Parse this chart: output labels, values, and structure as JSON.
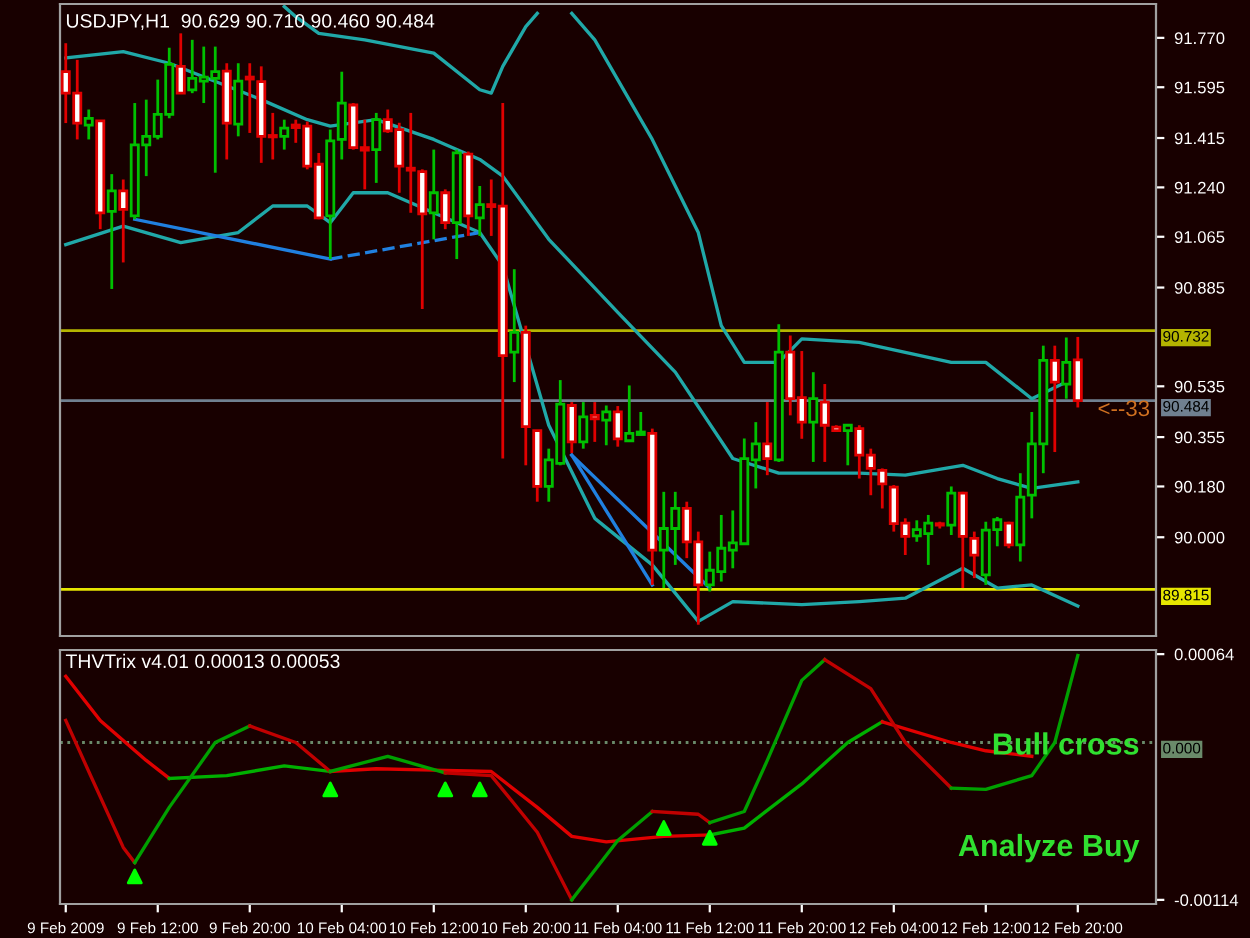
{
  "chart_data": [
    {
      "type": "candlestick",
      "title": "USDJPY,H1  90.629 90.710 90.460 90.484",
      "x": [
        "2009-02-09T04:00",
        "2009-02-09T05:00",
        "2009-02-09T06:00",
        "2009-02-09T07:00",
        "2009-02-09T08:00",
        "2009-02-09T09:00",
        "2009-02-09T10:00",
        "2009-02-09T11:00",
        "2009-02-09T12:00",
        "2009-02-09T13:00",
        "2009-02-09T14:00",
        "2009-02-09T15:00",
        "2009-02-09T16:00",
        "2009-02-09T17:00",
        "2009-02-09T18:00",
        "2009-02-09T19:00",
        "2009-02-09T20:00",
        "2009-02-09T21:00",
        "2009-02-09T22:00",
        "2009-02-09T23:00",
        "2009-02-10T00:00",
        "2009-02-10T01:00",
        "2009-02-10T02:00",
        "2009-02-10T03:00",
        "2009-02-10T04:00",
        "2009-02-10T05:00",
        "2009-02-10T06:00",
        "2009-02-10T07:00",
        "2009-02-10T08:00",
        "2009-02-10T09:00",
        "2009-02-10T10:00",
        "2009-02-10T11:00",
        "2009-02-10T12:00",
        "2009-02-10T13:00",
        "2009-02-10T14:00",
        "2009-02-10T15:00",
        "2009-02-10T16:00",
        "2009-02-10T17:00",
        "2009-02-10T18:00",
        "2009-02-10T19:00",
        "2009-02-10T20:00",
        "2009-02-10T21:00",
        "2009-02-10T22:00",
        "2009-02-10T23:00",
        "2009-02-11T00:00",
        "2009-02-11T01:00",
        "2009-02-11T02:00",
        "2009-02-11T03:00",
        "2009-02-11T04:00",
        "2009-02-11T05:00",
        "2009-02-11T06:00",
        "2009-02-11T07:00",
        "2009-02-11T08:00",
        "2009-02-11T09:00",
        "2009-02-11T10:00",
        "2009-02-11T11:00",
        "2009-02-11T12:00",
        "2009-02-11T13:00",
        "2009-02-11T14:00",
        "2009-02-11T15:00",
        "2009-02-11T16:00",
        "2009-02-11T17:00",
        "2009-02-11T18:00",
        "2009-02-11T19:00",
        "2009-02-11T20:00",
        "2009-02-11T21:00",
        "2009-02-11T22:00",
        "2009-02-11T23:00",
        "2009-02-12T00:00",
        "2009-02-12T01:00",
        "2009-02-12T02:00",
        "2009-02-12T03:00",
        "2009-02-12T04:00",
        "2009-02-12T05:00",
        "2009-02-12T06:00",
        "2009-02-12T07:00",
        "2009-02-12T08:00",
        "2009-02-12T09:00",
        "2009-02-12T10:00",
        "2009-02-12T11:00",
        "2009-02-12T12:00",
        "2009-02-12T13:00",
        "2009-02-12T14:00",
        "2009-02-12T15:00",
        "2009-02-12T16:00",
        "2009-02-12T17:00",
        "2009-02-12T18:00",
        "2009-02-12T19:00",
        "2009-02-12T20:00"
      ],
      "ohlc": [
        [
          91.65,
          91.751,
          91.468,
          91.574
        ],
        [
          91.574,
          91.692,
          91.41,
          91.468
        ],
        [
          91.461,
          91.516,
          91.41,
          91.485
        ],
        [
          91.476,
          91.476,
          91.092,
          91.15
        ],
        [
          91.155,
          91.287,
          90.88,
          91.228
        ],
        [
          91.228,
          91.268,
          90.974,
          91.162
        ],
        [
          91.139,
          91.539,
          91.127,
          91.391
        ],
        [
          91.391,
          91.551,
          91.28,
          91.421
        ],
        [
          91.421,
          91.622,
          91.41,
          91.499
        ],
        [
          91.499,
          91.735,
          91.485,
          91.676
        ],
        [
          91.669,
          91.786,
          91.574,
          91.574
        ],
        [
          91.586,
          91.763,
          91.574,
          91.626
        ],
        [
          91.617,
          91.739,
          91.539,
          91.631
        ],
        [
          91.626,
          91.739,
          91.292,
          91.65
        ],
        [
          91.652,
          91.68,
          91.339,
          91.468
        ],
        [
          91.464,
          91.68,
          91.421,
          91.617
        ],
        [
          91.631,
          91.68,
          91.433,
          91.624
        ],
        [
          91.615,
          91.669,
          91.327,
          91.421
        ],
        [
          91.424,
          91.504,
          91.339,
          91.419
        ],
        [
          91.421,
          91.48,
          91.374,
          91.45
        ],
        [
          91.461,
          91.48,
          91.398,
          91.452
        ],
        [
          91.457,
          91.473,
          91.304,
          91.315
        ],
        [
          91.322,
          91.362,
          91.127,
          91.132
        ],
        [
          91.139,
          91.445,
          90.986,
          91.405
        ],
        [
          91.41,
          91.65,
          91.339,
          91.539
        ],
        [
          91.532,
          91.539,
          91.374,
          91.381
        ],
        [
          91.381,
          91.48,
          91.233,
          91.372
        ],
        [
          91.374,
          91.504,
          91.256,
          91.48
        ],
        [
          91.48,
          91.516,
          91.433,
          91.44
        ],
        [
          91.445,
          91.469,
          91.221,
          91.315
        ],
        [
          91.308,
          91.504,
          91.15,
          91.301
        ],
        [
          91.296,
          91.304,
          90.809,
          91.146
        ],
        [
          91.15,
          91.374,
          91.056,
          91.221
        ],
        [
          91.221,
          91.233,
          91.092,
          91.115
        ],
        [
          91.115,
          91.374,
          90.986,
          91.362
        ],
        [
          91.358,
          91.367,
          91.068,
          91.139
        ],
        [
          91.132,
          91.245,
          91.068,
          91.179
        ],
        [
          91.179,
          91.268,
          91.068,
          91.172
        ],
        [
          91.174,
          91.539,
          90.279,
          90.644
        ],
        [
          90.656,
          90.95,
          90.55,
          90.726
        ],
        [
          90.726,
          90.75,
          90.255,
          90.392
        ],
        [
          90.378,
          90.378,
          90.126,
          90.18
        ],
        [
          90.18,
          90.314,
          90.126,
          90.274
        ],
        [
          90.262,
          90.557,
          90.255,
          90.472
        ],
        [
          90.467,
          90.479,
          90.298,
          90.338
        ],
        [
          90.338,
          90.479,
          90.314,
          90.427
        ],
        [
          90.432,
          90.479,
          90.338,
          90.42
        ],
        [
          90.415,
          90.467,
          90.326,
          90.444
        ],
        [
          90.444,
          90.465,
          90.321,
          90.349
        ],
        [
          90.342,
          90.538,
          90.338,
          90.368
        ],
        [
          90.364,
          90.444,
          90.361,
          90.373
        ],
        [
          90.368,
          90.385,
          89.831,
          89.954
        ],
        [
          89.954,
          90.161,
          89.82,
          90.031
        ],
        [
          90.031,
          90.161,
          89.902,
          90.102
        ],
        [
          90.102,
          90.126,
          89.926,
          89.984
        ],
        [
          89.984,
          90.02,
          89.69,
          89.831
        ],
        [
          89.831,
          89.949,
          89.808,
          89.883
        ],
        [
          89.878,
          90.079,
          89.843,
          89.961
        ],
        [
          89.954,
          90.095,
          89.89,
          89.98
        ],
        [
          89.977,
          90.35,
          89.973,
          90.279
        ],
        [
          90.274,
          90.408,
          90.173,
          90.331
        ],
        [
          90.331,
          90.479,
          90.22,
          90.279
        ],
        [
          90.274,
          90.755,
          90.267,
          90.656
        ],
        [
          90.656,
          90.715,
          90.432,
          90.491
        ],
        [
          90.495,
          90.66,
          90.349,
          90.408
        ],
        [
          90.408,
          90.585,
          90.267,
          90.491
        ],
        [
          90.479,
          90.543,
          90.267,
          90.397
        ],
        [
          90.39,
          90.397,
          90.373,
          90.378
        ],
        [
          90.378,
          90.397,
          90.255,
          90.397
        ],
        [
          90.385,
          90.397,
          90.208,
          90.291
        ],
        [
          90.291,
          90.314,
          90.149,
          90.244
        ],
        [
          90.237,
          90.244,
          90.102,
          90.189
        ],
        [
          90.178,
          90.185,
          90.02,
          90.048
        ],
        [
          90.05,
          90.067,
          89.937,
          90.003
        ],
        [
          90.005,
          90.06,
          89.984,
          90.027
        ],
        [
          90.013,
          90.079,
          89.902,
          90.05
        ],
        [
          90.048,
          90.055,
          90.031,
          90.043
        ],
        [
          90.043,
          90.18,
          90.008,
          90.156
        ],
        [
          90.156,
          90.161,
          89.82,
          90.003
        ],
        [
          89.996,
          90.02,
          89.855,
          89.937
        ],
        [
          89.867,
          90.055,
          89.831,
          90.025
        ],
        [
          90.027,
          90.072,
          89.968,
          90.062
        ],
        [
          90.05,
          90.055,
          89.961,
          89.973
        ],
        [
          89.973,
          90.227,
          89.914,
          90.142
        ],
        [
          90.149,
          90.444,
          90.067,
          90.331
        ],
        [
          90.331,
          90.679,
          90.227,
          90.627
        ],
        [
          90.627,
          90.679,
          90.302,
          90.55
        ],
        [
          90.543,
          90.708,
          90.491,
          90.62
        ],
        [
          90.629,
          90.71,
          90.46,
          90.484
        ]
      ],
      "colors": [
        "#e00000",
        "#e00000",
        "#00c000",
        "#e00000",
        "#00c000",
        "#e00000",
        "#00c000",
        "#00c000",
        "#00c000",
        "#00c000",
        "#e00000",
        "#00c000",
        "#00c000",
        "#00c000",
        "#e00000",
        "#00c000",
        "#e00000",
        "#e00000",
        "#e00000",
        "#00c000",
        "#e00000",
        "#e00000",
        "#e00000",
        "#00c000",
        "#00c000",
        "#e00000",
        "#e00000",
        "#00c000",
        "#e00000",
        "#e00000",
        "#e00000",
        "#e00000",
        "#00c000",
        "#e00000",
        "#00c000",
        "#e00000",
        "#00c000",
        "#e00000",
        "#e00000",
        "#00c000",
        "#e00000",
        "#e00000",
        "#00c000",
        "#00c000",
        "#e00000",
        "#00c000",
        "#e00000",
        "#00c000",
        "#e00000",
        "#00c000",
        "#00c000",
        "#e00000",
        "#00c000",
        "#00c000",
        "#e00000",
        "#e00000",
        "#00c000",
        "#00c000",
        "#00c000",
        "#00c000",
        "#00c000",
        "#e00000",
        "#00c000",
        "#e00000",
        "#e00000",
        "#00c000",
        "#e00000",
        "#e00000",
        "#00c000",
        "#e00000",
        "#e00000",
        "#e00000",
        "#e00000",
        "#e00000",
        "#00c000",
        "#00c000",
        "#e00000",
        "#00c000",
        "#e00000",
        "#e00000",
        "#00c000",
        "#00c000",
        "#e00000",
        "#00c000",
        "#00c000",
        "#00c000",
        "#e00000",
        "#00c000",
        "#e00000"
      ],
      "series": [
        {
          "type": "line",
          "color": "#20a8a8",
          "line_style": "solid",
          "x": [
            "2009-02-09T23:00",
            "2009-02-10T00:00",
            "2009-02-10T02:00",
            "2009-02-10T06:00",
            "2009-02-10T12:00",
            "2009-02-10T16:00",
            "2009-02-10T17:00",
            "2009-02-10T18:00",
            "2009-02-10T20:00",
            "2009-02-10T21:00",
            "2009-02-10T22:00",
            "2009-02-11T00:00",
            "2009-02-11T02:00",
            "2009-02-11T06:00",
            "2009-02-11T07:00",
            "2009-02-11T11:00",
            "2009-02-11T13:00",
            "2009-02-11T15:00",
            "2009-02-11T18:00",
            "2009-02-11T20:00",
            "2009-02-12T01:00",
            "2009-02-12T09:00",
            "2009-02-12T12:00",
            "2009-02-12T16:00",
            "2009-02-12T19:00"
          ],
          "values": [
            91.881,
            91.845,
            91.786,
            91.763,
            91.716,
            91.586,
            91.574,
            91.669,
            91.81,
            91.857,
            null,
            91.857,
            91.763,
            91.48,
            91.41,
            91.08,
            90.75,
            90.62,
            90.62,
            90.703,
            90.691,
            90.62,
            90.62,
            90.491,
            90.55
          ]
        },
        {
          "type": "line",
          "color": "#20a8a8",
          "line_style": "solid",
          "x": [
            "2009-02-09T04:00",
            "2009-02-09T09:00",
            "2009-02-09T13:00",
            "2009-02-09T21:00",
            "2009-02-10T01:00",
            "2009-02-10T03:00",
            "2009-02-10T07:00",
            "2009-02-10T12:00",
            "2009-02-10T16:00",
            "2009-02-10T18:00",
            "2009-02-10T22:00",
            "2009-02-11T04:00",
            "2009-02-11T09:00",
            "2009-02-11T14:00",
            "2009-02-11T18:00",
            "2009-02-12T01:00",
            "2009-02-12T05:00",
            "2009-02-12T10:00",
            "2009-02-12T13:00",
            "2009-02-12T16:00",
            "2009-02-12T20:00"
          ],
          "values": [
            91.699,
            91.721,
            91.68,
            91.551,
            91.48,
            91.457,
            91.48,
            91.41,
            91.339,
            91.28,
            91.056,
            90.797,
            90.585,
            90.279,
            90.227,
            90.227,
            90.22,
            90.255,
            90.208,
            90.173,
            90.196
          ]
        },
        {
          "type": "line",
          "color": "#20a8a8",
          "line_style": "solid",
          "x": [
            "2009-02-09T04:00",
            "2009-02-09T09:00",
            "2009-02-09T14:00",
            "2009-02-09T19:00",
            "2009-02-09T22:00",
            "2009-02-10T01:00",
            "2009-02-10T03:00",
            "2009-02-10T05:00",
            "2009-02-10T08:00",
            "2009-02-10T12:00",
            "2009-02-10T16:00",
            "2009-02-10T18:00",
            "2009-02-10T22:00",
            "2009-02-11T02:00",
            "2009-02-11T07:00",
            "2009-02-11T11:00",
            "2009-02-11T14:00",
            "2009-02-11T20:00",
            "2009-02-12T01:00",
            "2009-02-12T05:00",
            "2009-02-12T10:00",
            "2009-02-12T13:00",
            "2009-02-12T16:00",
            "2009-02-12T20:00"
          ],
          "values": [
            91.037,
            91.103,
            91.044,
            91.08,
            91.174,
            91.174,
            91.115,
            91.221,
            91.221,
            91.15,
            91.08,
            90.962,
            90.397,
            90.067,
            89.902,
            89.702,
            89.772,
            89.761,
            89.772,
            89.784,
            89.89,
            89.82,
            89.831,
            89.756
          ]
        },
        {
          "type": "line",
          "color": "#2080e0",
          "line_style": "solid",
          "x": [
            "2009-02-09T10:00",
            "2009-02-10T03:00"
          ],
          "values": [
            91.127,
            90.986
          ]
        },
        {
          "type": "line",
          "color": "#2080e0",
          "line_style": "dashed",
          "x": [
            "2009-02-10T03:00",
            "2009-02-10T16:00"
          ],
          "values": [
            90.986,
            91.08
          ]
        },
        {
          "type": "line",
          "color": "#2080e0",
          "line_style": "solid",
          "x": [
            "2009-02-11T00:00",
            "2009-02-11T12:00"
          ],
          "values": [
            90.291,
            89.82
          ]
        },
        {
          "type": "line",
          "color": "#2080e0",
          "line_style": "solid",
          "x": [
            "2009-02-11T00:00",
            "2009-02-11T07:00"
          ],
          "values": [
            90.291,
            89.831
          ]
        }
      ],
      "ref_lines": [
        {
          "axis": "y",
          "value": 90.732,
          "label": "90.732",
          "color": "#b4b400"
        },
        {
          "axis": "y",
          "value": 89.815,
          "label": "89.815",
          "color": "#e6e600"
        },
        {
          "axis": "y",
          "value": 90.484,
          "label": "90.484",
          "color": "#708090"
        }
      ],
      "annotations": [
        {
          "text": "<--33",
          "x": "2009-02-13T00:00",
          "y": 90.45
        }
      ],
      "xlim": [
        "2009-02-09T03:30",
        "2009-02-13T02:48"
      ],
      "ylim": [
        89.65,
        91.89
      ],
      "yticks": [
        {
          "value": 91.77,
          "label": "91.770"
        },
        91.595,
        91.415,
        {
          "value": 91.24,
          "label": "91.240"
        },
        91.065,
        90.885,
        90.535,
        90.355,
        {
          "value": 90.18,
          "label": "90.180"
        },
        {
          "value": 90.0,
          "label": "90.000"
        }
      ],
      "tick_labels": "y",
      "grid": false,
      "legend": false
    },
    {
      "type": "line",
      "title": "THVTrix v4.01 0.00013 0.00053",
      "series": [
        {
          "type": "line",
          "color": "#e00000",
          "line_style": "solid",
          "x": [
            "2009-02-09T04:00",
            "2009-02-09T07:00",
            "2009-02-09T11:00",
            "2009-02-09T13:00"
          ],
          "values": [
            0.00048,
            0.00016,
            -0.00013,
            -0.00026
          ]
        },
        {
          "type": "line",
          "color": "#00b000",
          "line_style": "solid",
          "x": [
            "2009-02-09T13:00",
            "2009-02-09T18:00",
            "2009-02-09T23:00",
            "2009-02-10T03:00"
          ],
          "values": [
            -0.00026,
            -0.00024,
            -0.00017,
            -0.00021
          ]
        },
        {
          "type": "line",
          "color": "#e00000",
          "line_style": "solid",
          "x": [
            "2009-02-10T03:00",
            "2009-02-10T07:00",
            "2009-02-10T12:00",
            "2009-02-10T17:00",
            "2009-02-10T21:00",
            "2009-02-11T00:00",
            "2009-02-11T03:00",
            "2009-02-11T08:00",
            "2009-02-11T12:00"
          ],
          "values": [
            -0.00021,
            -0.00019,
            -0.0002,
            -0.00021,
            -0.00047,
            -0.00068,
            -0.00072,
            -0.00068,
            -0.00067
          ]
        },
        {
          "type": "line",
          "color": "#00b000",
          "line_style": "solid",
          "x": [
            "2009-02-11T12:00",
            "2009-02-11T15:00",
            "2009-02-11T20:00",
            "2009-02-12T00:00",
            "2009-02-12T03:00"
          ],
          "values": [
            -0.00067,
            -0.00062,
            -0.0003,
            0.0,
            0.00015
          ]
        },
        {
          "type": "line",
          "color": "#e00000",
          "line_style": "solid",
          "x": [
            "2009-02-12T03:00",
            "2009-02-12T09:00",
            "2009-02-12T12:00",
            "2009-02-12T16:00"
          ],
          "values": [
            0.00015,
            0.0,
            -6e-05,
            -0.0001
          ]
        },
        {
          "type": "line",
          "color": "#c00000",
          "line_style": "solid",
          "x": [
            "2009-02-09T04:00",
            "2009-02-09T06:00",
            "2009-02-09T09:00",
            "2009-02-09T10:00"
          ],
          "values": [
            0.00016,
            -0.00021,
            -0.00076,
            -0.00087
          ]
        },
        {
          "type": "line",
          "color": "#00a000",
          "line_style": "solid",
          "x": [
            "2009-02-09T10:00",
            "2009-02-09T13:00",
            "2009-02-09T17:00",
            "2009-02-09T20:00"
          ],
          "values": [
            -0.00087,
            -0.00047,
            0.0,
            0.00012
          ]
        },
        {
          "type": "line",
          "color": "#c00000",
          "line_style": "solid",
          "x": [
            "2009-02-09T20:00",
            "2009-02-10T00:00",
            "2009-02-10T03:00"
          ],
          "values": [
            0.00012,
            0.0,
            -0.00021
          ]
        },
        {
          "type": "line",
          "color": "#00a000",
          "line_style": "solid",
          "x": [
            "2009-02-10T03:00",
            "2009-02-10T08:00",
            "2009-02-10T13:00"
          ],
          "values": [
            -0.00021,
            -0.0001,
            -0.00022
          ]
        },
        {
          "type": "line",
          "color": "#c00000",
          "line_style": "solid",
          "x": [
            "2009-02-10T13:00",
            "2009-02-10T17:00",
            "2009-02-10T21:00",
            "2009-02-11T00:00"
          ],
          "values": [
            -0.00022,
            -0.00024,
            -0.00065,
            -0.00114
          ]
        },
        {
          "type": "line",
          "color": "#00a000",
          "line_style": "solid",
          "x": [
            "2009-02-11T00:00",
            "2009-02-11T04:00",
            "2009-02-11T07:00"
          ],
          "values": [
            -0.00114,
            -0.00071,
            -0.0005
          ]
        },
        {
          "type": "line",
          "color": "#c00000",
          "line_style": "solid",
          "x": [
            "2009-02-11T07:00",
            "2009-02-11T11:00",
            "2009-02-11T12:00"
          ],
          "values": [
            -0.0005,
            -0.00052,
            -0.00058
          ]
        },
        {
          "type": "line",
          "color": "#00a000",
          "line_style": "solid",
          "x": [
            "2009-02-11T12:00",
            "2009-02-11T15:00",
            "2009-02-11T17:00",
            "2009-02-11T20:00",
            "2009-02-11T22:00"
          ],
          "values": [
            -0.00058,
            -0.0005,
            -0.00013,
            0.00045,
            0.0006
          ]
        },
        {
          "type": "line",
          "color": "#c00000",
          "line_style": "solid",
          "x": [
            "2009-02-11T22:00",
            "2009-02-12T02:00",
            "2009-02-12T05:00",
            "2009-02-12T09:00"
          ],
          "values": [
            0.0006,
            0.00039,
            0.0,
            -0.00033
          ]
        },
        {
          "type": "line",
          "color": "#00a000",
          "line_style": "solid",
          "x": [
            "2009-02-12T09:00",
            "2009-02-12T12:00",
            "2009-02-12T16:00",
            "2009-02-12T18:00",
            "2009-02-12T20:00"
          ],
          "values": [
            -0.00033,
            -0.00034,
            -0.00024,
            0.0,
            0.00063
          ]
        },
        {
          "type": "scatter",
          "color": "#00ff00",
          "marker": "triangle",
          "x": [
            "2009-02-09T10:00",
            "2009-02-10T03:00",
            "2009-02-10T13:00",
            "2009-02-10T16:00",
            "2009-02-11T08:00",
            "2009-02-11T12:00"
          ],
          "values": [
            -0.00097,
            -0.00034,
            -0.00034,
            -0.00034,
            -0.00062,
            -0.00069
          ]
        }
      ],
      "ref_lines": [
        {
          "axis": "y",
          "value": 0,
          "label": "0.000",
          "color": "#6a8a6a",
          "line_style": "dotted"
        }
      ],
      "annotations": [
        "Bull cross",
        "Analyze Buy"
      ],
      "xlim": [
        "2009-02-09T03:30",
        "2009-02-13T02:48"
      ],
      "ylim": [
        -0.00117,
        0.00067
      ],
      "xticks": [
        {
          "value": "2009-02-09T04:00",
          "label": "9 Feb 2009"
        },
        {
          "value": "2009-02-09T12:00",
          "label": "9 Feb 12:00"
        },
        {
          "value": "2009-02-09T20:00",
          "label": "9 Feb 20:00"
        },
        {
          "value": "2009-02-10T04:00",
          "label": "10 Feb 04:00"
        },
        {
          "value": "2009-02-10T12:00",
          "label": "10 Feb 12:00"
        },
        {
          "value": "2009-02-10T20:00",
          "label": "10 Feb 20:00"
        },
        {
          "value": "2009-02-11T04:00",
          "label": "11 Feb 04:00"
        },
        {
          "value": "2009-02-11T12:00",
          "label": "11 Feb 12:00"
        },
        {
          "value": "2009-02-11T20:00",
          "label": "11 Feb 20:00"
        },
        {
          "value": "2009-02-12T04:00",
          "label": "12 Feb 04:00"
        },
        {
          "value": "2009-02-12T12:00",
          "label": "12 Feb 12:00"
        },
        {
          "value": "2009-02-12T20:00",
          "label": "12 Feb 20:00"
        }
      ],
      "yticks": [
        0.00064,
        -0.00114
      ],
      "grid": false,
      "legend": false
    }
  ]
}
